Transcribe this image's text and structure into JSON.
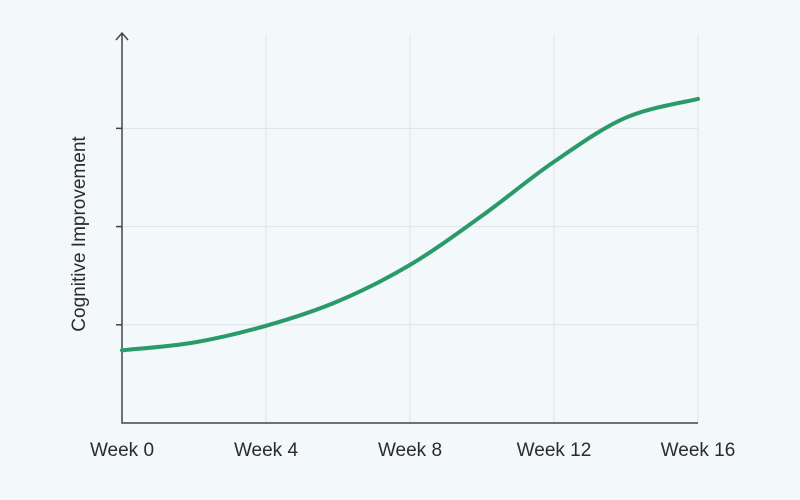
{
  "chart_data": {
    "type": "line",
    "y_label": "Cognitive Improvement",
    "x": [
      0,
      2,
      4,
      6,
      8,
      10,
      12,
      14,
      16
    ],
    "series": [
      {
        "color": "#2a9a6a",
        "values": [
          0.74,
          0.82,
          0.99,
          1.24,
          1.61,
          2.11,
          2.66,
          3.11,
          3.3
        ]
      }
    ],
    "xlim": [
      0,
      16
    ],
    "xticks": [
      {
        "value": 0,
        "label": "Week 0"
      },
      {
        "value": 4,
        "label": "Week 4"
      },
      {
        "value": 8,
        "label": "Week 8"
      },
      {
        "value": 12,
        "label": "Week 12"
      },
      {
        "value": 16,
        "label": "Week 16"
      }
    ],
    "ylim": [
      0,
      3.9
    ],
    "yticks": [
      1,
      2,
      3
    ],
    "grid": true
  }
}
